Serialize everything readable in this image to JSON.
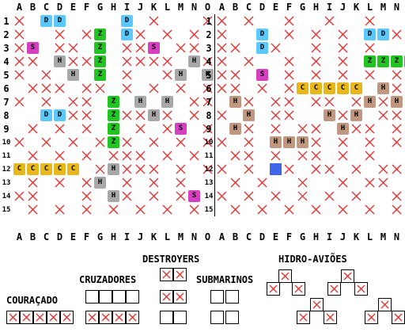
{
  "board": {
    "columns": [
      "A",
      "B",
      "C",
      "D",
      "E",
      "F",
      "G",
      "H",
      "I",
      "J",
      "K",
      "L",
      "M",
      "N",
      "O"
    ],
    "rows": [
      "1",
      "2",
      "3",
      "4",
      "5",
      "6",
      "7",
      "8",
      "9",
      "10",
      "11",
      "12",
      "13",
      "14",
      "15"
    ],
    "colors": {
      "blue": "#5bc8ff",
      "green": "#22c422",
      "magenta": "#d63fbf",
      "gray": "#a8a8a8",
      "brown": "#c09880",
      "yellow": "#e8b81a",
      "solid_blue": "#3f66e8",
      "miss": "#e03030"
    },
    "left": {
      "misses": [
        [
          1,
          1
        ],
        [
          11,
          1
        ],
        [
          15,
          1
        ],
        [
          1,
          2
        ],
        [
          4,
          2
        ],
        [
          6,
          2
        ],
        [
          10,
          2
        ],
        [
          12,
          2
        ],
        [
          14,
          2
        ],
        [
          1,
          3
        ],
        [
          4,
          3
        ],
        [
          5,
          3
        ],
        [
          7,
          3
        ],
        [
          9,
          3
        ],
        [
          10,
          3
        ],
        [
          13,
          3
        ],
        [
          14,
          3
        ],
        [
          1,
          4
        ],
        [
          2,
          4
        ],
        [
          4,
          4
        ],
        [
          5,
          4
        ],
        [
          6,
          4
        ],
        [
          9,
          4
        ],
        [
          10,
          4
        ],
        [
          11,
          4
        ],
        [
          12,
          4
        ],
        [
          15,
          4
        ],
        [
          1,
          5
        ],
        [
          3,
          5
        ],
        [
          5,
          5
        ],
        [
          7,
          5
        ],
        [
          9,
          5
        ],
        [
          12,
          5
        ],
        [
          15,
          5
        ],
        [
          2,
          6
        ],
        [
          3,
          6
        ],
        [
          4,
          6
        ],
        [
          6,
          6
        ],
        [
          7,
          6
        ],
        [
          9,
          6
        ],
        [
          11,
          6
        ],
        [
          13,
          6
        ],
        [
          15,
          6
        ],
        [
          1,
          7
        ],
        [
          3,
          7
        ],
        [
          5,
          7
        ],
        [
          6,
          7
        ],
        [
          8,
          7
        ],
        [
          10,
          7
        ],
        [
          12,
          7
        ],
        [
          14,
          7
        ],
        [
          15,
          7
        ],
        [
          4,
          8
        ],
        [
          5,
          8
        ],
        [
          6,
          8
        ],
        [
          9,
          8
        ],
        [
          10,
          8
        ],
        [
          12,
          8
        ],
        [
          14,
          8
        ],
        [
          2,
          9
        ],
        [
          4,
          9
        ],
        [
          6,
          9
        ],
        [
          8,
          9
        ],
        [
          10,
          9
        ],
        [
          12,
          9
        ],
        [
          15,
          9
        ],
        [
          1,
          10
        ],
        [
          3,
          10
        ],
        [
          5,
          10
        ],
        [
          7,
          10
        ],
        [
          9,
          10
        ],
        [
          11,
          10
        ],
        [
          13,
          10
        ],
        [
          15,
          10
        ],
        [
          2,
          11
        ],
        [
          4,
          11
        ],
        [
          6,
          11
        ],
        [
          8,
          11
        ],
        [
          9,
          11
        ],
        [
          10,
          11
        ],
        [
          12,
          11
        ],
        [
          14,
          11
        ],
        [
          7,
          12
        ],
        [
          9,
          12
        ],
        [
          10,
          12
        ],
        [
          11,
          12
        ],
        [
          13,
          12
        ],
        [
          15,
          12
        ],
        [
          2,
          13
        ],
        [
          4,
          13
        ],
        [
          6,
          13
        ],
        [
          9,
          13
        ],
        [
          11,
          13
        ],
        [
          13,
          13
        ],
        [
          1,
          14
        ],
        [
          2,
          14
        ],
        [
          6,
          14
        ],
        [
          9,
          14
        ],
        [
          11,
          14
        ],
        [
          13,
          14
        ],
        [
          2,
          15
        ],
        [
          4,
          15
        ],
        [
          6,
          15
        ],
        [
          8,
          15
        ],
        [
          10,
          15
        ],
        [
          12,
          15
        ],
        [
          14,
          15
        ]
      ],
      "ships": [
        {
          "cells": [
            [
              3,
              1
            ],
            [
              4,
              1
            ]
          ],
          "color": "blue",
          "letter": "D"
        },
        {
          "cells": [
            [
              9,
              1
            ],
            [
              9,
              2
            ]
          ],
          "color": "blue",
          "letter": "D"
        },
        {
          "cells": [
            [
              3,
              8
            ],
            [
              4,
              8
            ]
          ],
          "color": "blue",
          "letter": "D"
        },
        {
          "cells": [
            [
              7,
              2
            ],
            [
              7,
              3
            ],
            [
              7,
              4
            ],
            [
              7,
              5
            ]
          ],
          "color": "green",
          "letter": "Z"
        },
        {
          "cells": [
            [
              8,
              7
            ],
            [
              8,
              8
            ],
            [
              8,
              9
            ],
            [
              8,
              10
            ]
          ],
          "color": "green",
          "letter": "Z"
        },
        {
          "cells": [
            [
              2,
              3
            ]
          ],
          "color": "magenta",
          "letter": "S"
        },
        {
          "cells": [
            [
              11,
              3
            ]
          ],
          "color": "magenta",
          "letter": "S"
        },
        {
          "cells": [
            [
              13,
              9
            ]
          ],
          "color": "magenta",
          "letter": "S"
        },
        {
          "cells": [
            [
              14,
              14
            ]
          ],
          "color": "magenta",
          "letter": "S"
        },
        {
          "cells": [
            [
              4,
              4
            ],
            [
              5,
              5
            ]
          ],
          "color": "gray",
          "letter": "H"
        },
        {
          "cells": [
            [
              14,
              4
            ],
            [
              13,
              5
            ],
            [
              15,
              5
            ]
          ],
          "color": "gray",
          "letter": "H"
        },
        {
          "cells": [
            [
              10,
              7
            ],
            [
              12,
              7
            ],
            [
              11,
              8
            ]
          ],
          "color": "gray",
          "letter": "H"
        },
        {
          "cells": [
            [
              8,
              12
            ],
            [
              7,
              13
            ],
            [
              8,
              14
            ]
          ],
          "color": "gray",
          "letter": "H"
        },
        {
          "cells": [
            [
              1,
              12
            ],
            [
              2,
              12
            ],
            [
              3,
              12
            ],
            [
              4,
              12
            ],
            [
              5,
              12
            ]
          ],
          "color": "yellow",
          "letter": "C"
        }
      ],
      "solid": []
    },
    "right": {
      "misses": [
        [
          1,
          1
        ],
        [
          3,
          1
        ],
        [
          6,
          1
        ],
        [
          9,
          1
        ],
        [
          12,
          1
        ],
        [
          1,
          2
        ],
        [
          4,
          2
        ],
        [
          6,
          2
        ],
        [
          8,
          2
        ],
        [
          10,
          2
        ],
        [
          14,
          2
        ],
        [
          1,
          3
        ],
        [
          2,
          3
        ],
        [
          5,
          3
        ],
        [
          8,
          3
        ],
        [
          10,
          3
        ],
        [
          12,
          3
        ],
        [
          15,
          3
        ],
        [
          1,
          4
        ],
        [
          3,
          4
        ],
        [
          6,
          4
        ],
        [
          8,
          4
        ],
        [
          10,
          4
        ],
        [
          1,
          5
        ],
        [
          2,
          5
        ],
        [
          4,
          5
        ],
        [
          6,
          5
        ],
        [
          8,
          5
        ],
        [
          10,
          5
        ],
        [
          12,
          5
        ],
        [
          14,
          5
        ],
        [
          1,
          6
        ],
        [
          2,
          6
        ],
        [
          4,
          6
        ],
        [
          6,
          6
        ],
        [
          14,
          6
        ],
        [
          15,
          6
        ],
        [
          3,
          7
        ],
        [
          5,
          7
        ],
        [
          6,
          7
        ],
        [
          8,
          7
        ],
        [
          9,
          7
        ],
        [
          11,
          7
        ],
        [
          13,
          7
        ],
        [
          1,
          8
        ],
        [
          3,
          8
        ],
        [
          5,
          8
        ],
        [
          6,
          8
        ],
        [
          9,
          8
        ],
        [
          10,
          8
        ],
        [
          11,
          8
        ],
        [
          13,
          8
        ],
        [
          14,
          8
        ],
        [
          15,
          8
        ],
        [
          2,
          9
        ],
        [
          3,
          9
        ],
        [
          5,
          9
        ],
        [
          7,
          9
        ],
        [
          8,
          9
        ],
        [
          10,
          9
        ],
        [
          11,
          9
        ],
        [
          12,
          9
        ],
        [
          14,
          9
        ],
        [
          1,
          10
        ],
        [
          3,
          10
        ],
        [
          6,
          10
        ],
        [
          8,
          10
        ],
        [
          10,
          10
        ],
        [
          12,
          10
        ],
        [
          14,
          10
        ],
        [
          2,
          11
        ],
        [
          3,
          11
        ],
        [
          5,
          11
        ],
        [
          7,
          11
        ],
        [
          8,
          11
        ],
        [
          10,
          11
        ],
        [
          12,
          11
        ],
        [
          15,
          11
        ],
        [
          1,
          12
        ],
        [
          3,
          12
        ],
        [
          6,
          12
        ],
        [
          8,
          12
        ],
        [
          9,
          12
        ],
        [
          11,
          12
        ],
        [
          13,
          12
        ],
        [
          14,
          12
        ],
        [
          2,
          13
        ],
        [
          4,
          13
        ],
        [
          7,
          13
        ],
        [
          10,
          13
        ],
        [
          12,
          13
        ],
        [
          13,
          13
        ],
        [
          15,
          13
        ],
        [
          1,
          14
        ],
        [
          3,
          14
        ],
        [
          5,
          14
        ],
        [
          7,
          14
        ],
        [
          9,
          14
        ],
        [
          11,
          14
        ],
        [
          14,
          14
        ],
        [
          2,
          15
        ],
        [
          4,
          15
        ],
        [
          6,
          15
        ],
        [
          8,
          15
        ],
        [
          10,
          15
        ],
        [
          12,
          15
        ],
        [
          14,
          15
        ]
      ],
      "ships": [
        {
          "cells": [
            [
              4,
              2
            ],
            [
              4,
              3
            ]
          ],
          "color": "blue",
          "letter": "D"
        },
        {
          "cells": [
            [
              12,
              2
            ],
            [
              13,
              2
            ]
          ],
          "color": "blue",
          "letter": "D"
        },
        {
          "cells": [
            [
              4,
              5
            ]
          ],
          "color": "magenta",
          "letter": "S"
        },
        {
          "cells": [
            [
              12,
              4
            ],
            [
              13,
              4
            ],
            [
              14,
              4
            ],
            [
              15,
              4
            ]
          ],
          "color": "green",
          "letter": "Z"
        },
        {
          "cells": [
            [
              7,
              6
            ],
            [
              8,
              6
            ],
            [
              9,
              6
            ],
            [
              10,
              6
            ],
            [
              11,
              6
            ]
          ],
          "color": "yellow",
          "letter": "C"
        },
        {
          "cells": [
            [
              13,
              6
            ],
            [
              12,
              7
            ],
            [
              14,
              7
            ]
          ],
          "color": "brown",
          "letter": "H"
        },
        {
          "cells": [
            [
              2,
              7
            ],
            [
              3,
              8
            ],
            [
              2,
              9
            ]
          ],
          "color": "brown",
          "letter": "H"
        },
        {
          "cells": [
            [
              9,
              8
            ],
            [
              11,
              8
            ],
            [
              10,
              9
            ]
          ],
          "color": "brown",
          "letter": "H"
        },
        {
          "cells": [
            [
              5,
              10
            ],
            [
              6,
              10
            ],
            [
              7,
              10
            ]
          ],
          "color": "brown",
          "letter": "H"
        }
      ],
      "solid": [
        [
          5,
          12
        ]
      ]
    }
  },
  "legend": {
    "destroyers": "DESTROYERS",
    "cruzadores": "CRUZADORES",
    "submarinos": "SUBMARINOS",
    "hidroavioes": "HIDRO-AVIÕES",
    "couracado": "COURAÇADO"
  }
}
